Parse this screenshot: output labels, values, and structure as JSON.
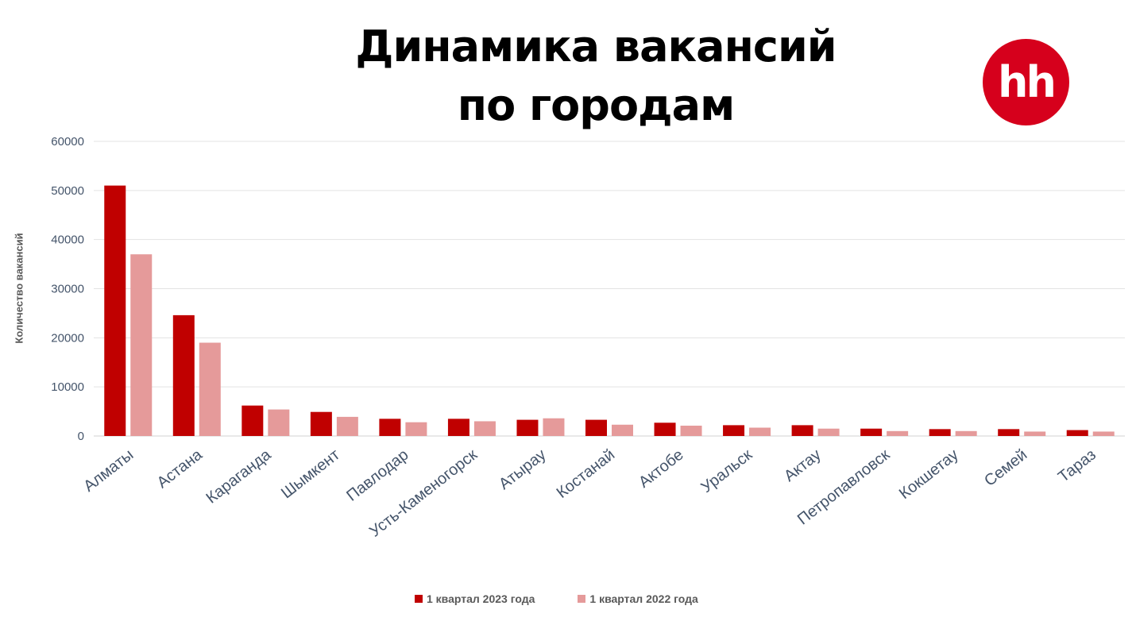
{
  "header": {
    "title_line1": "Динамика вакансий",
    "title_line2": "по городам",
    "logo_text": "hh"
  },
  "colors": {
    "series_2023": "#c00000",
    "series_2022": "#e59a9a",
    "logo_bg": "#d6001c",
    "grid": "#e3e3e3",
    "axis_text": "#44546a"
  },
  "chart_data": {
    "type": "bar",
    "title": "Динамика вакансий по городам",
    "xlabel": "",
    "ylabel": "Количество вакансий",
    "ylim": [
      0,
      60000
    ],
    "yticks": [
      0,
      10000,
      20000,
      30000,
      40000,
      50000,
      60000
    ],
    "grid": true,
    "legend_position": "bottom",
    "categories": [
      "Алматы",
      "Астана",
      "Караганда",
      "Шымкент",
      "Павлодар",
      "Усть-Каменогорск",
      "Атырау",
      "Костанай",
      "Актобе",
      "Уральск",
      "Актау",
      "Петропавловск",
      "Кокшетау",
      "Семей",
      "Тараз"
    ],
    "series": [
      {
        "name": "1 квартал 2023 года",
        "values": [
          51000,
          24600,
          6200,
          4900,
          3500,
          3500,
          3300,
          3300,
          2700,
          2200,
          2200,
          1500,
          1400,
          1400,
          1200
        ]
      },
      {
        "name": "1 квартал 2022 года",
        "values": [
          37000,
          19000,
          5400,
          3900,
          2800,
          3000,
          3600,
          2300,
          2100,
          1700,
          1500,
          1000,
          1000,
          900,
          900
        ]
      }
    ]
  }
}
